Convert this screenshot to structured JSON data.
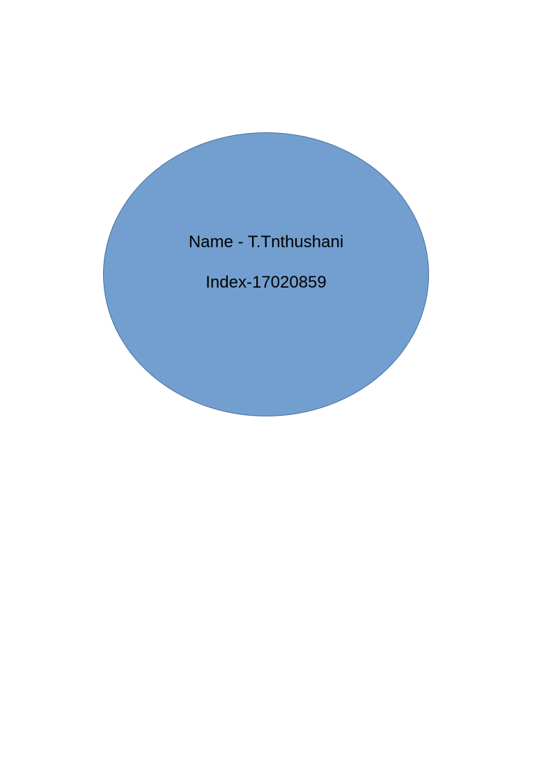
{
  "colors": {
    "page_background": "#ffffff",
    "ellipse_fill": "#729fcf",
    "ellipse_border": "#4a6f9c",
    "text": "#000000"
  },
  "shape": {
    "lines": [
      {
        "text": "Name - T.Tnthushani"
      },
      {
        "text": "Index-17020859"
      }
    ]
  }
}
